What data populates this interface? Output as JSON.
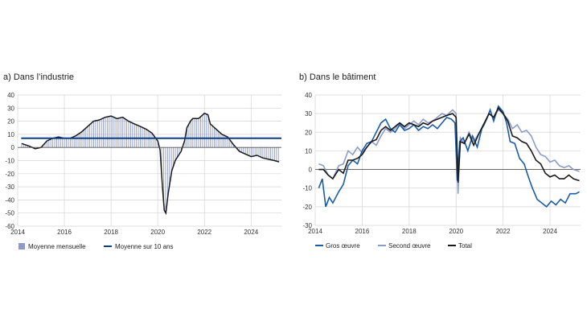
{
  "chart_data": [
    {
      "id": "a",
      "type": "bar+line",
      "title": "a)  Dans l’industrie",
      "xlim": [
        2014,
        2025.3
      ],
      "ylim": [
        -60,
        40
      ],
      "x_ticks": [
        2014,
        2016,
        2018,
        2020,
        2022,
        2024
      ],
      "y_ticks": [
        40,
        30,
        20,
        10,
        0,
        -10,
        -20,
        -30,
        -40,
        -50,
        -60
      ],
      "grid": true,
      "colors": {
        "bars": "#8d99c8",
        "bar_line": "#1a1a1a",
        "avg": "#0c3f8a"
      },
      "series": [
        {
          "name": "Moyenne mensuelle",
          "kind": "bar",
          "points": [
            [
              2014.17,
              3
            ],
            [
              2014.5,
              1
            ],
            [
              2014.75,
              -1
            ],
            [
              2015,
              0
            ],
            [
              2015.25,
              5
            ],
            [
              2015.5,
              7
            ],
            [
              2015.75,
              8
            ],
            [
              2016,
              7
            ],
            [
              2016.25,
              7
            ],
            [
              2016.5,
              9
            ],
            [
              2016.75,
              12
            ],
            [
              2017,
              16
            ],
            [
              2017.25,
              20
            ],
            [
              2017.5,
              21
            ],
            [
              2017.75,
              23
            ],
            [
              2018,
              24
            ],
            [
              2018.25,
              22
            ],
            [
              2018.5,
              23
            ],
            [
              2018.75,
              20
            ],
            [
              2019,
              18
            ],
            [
              2019.25,
              16
            ],
            [
              2019.5,
              14
            ],
            [
              2019.75,
              11
            ],
            [
              2020,
              5
            ],
            [
              2020.1,
              -2
            ],
            [
              2020.2,
              -30
            ],
            [
              2020.28,
              -48
            ],
            [
              2020.35,
              -50
            ],
            [
              2020.45,
              -35
            ],
            [
              2020.6,
              -18
            ],
            [
              2020.75,
              -10
            ],
            [
              2021,
              -3
            ],
            [
              2021.15,
              5
            ],
            [
              2021.25,
              15
            ],
            [
              2021.4,
              20
            ],
            [
              2021.5,
              22
            ],
            [
              2021.75,
              22
            ],
            [
              2022,
              26
            ],
            [
              2022.15,
              25
            ],
            [
              2022.25,
              18
            ],
            [
              2022.5,
              14
            ],
            [
              2022.75,
              10
            ],
            [
              2023,
              8
            ],
            [
              2023.25,
              2
            ],
            [
              2023.5,
              -3
            ],
            [
              2023.75,
              -5
            ],
            [
              2024,
              -7
            ],
            [
              2024.25,
              -6
            ],
            [
              2024.5,
              -8
            ],
            [
              2024.75,
              -9
            ],
            [
              2025,
              -10
            ],
            [
              2025.2,
              -11
            ]
          ]
        },
        {
          "name": "Moyenne sur 10 ans",
          "kind": "line",
          "points": [
            [
              2014.15,
              7
            ],
            [
              2025.3,
              7
            ]
          ]
        }
      ],
      "legend": [
        {
          "label": "Moyenne mensuelle",
          "symbol": "bar"
        },
        {
          "label": "Moyenne sur 10 ans",
          "symbol": "line"
        }
      ]
    },
    {
      "id": "b",
      "type": "line",
      "title": "b)  Dans le bâtiment",
      "xlim": [
        2014,
        2025.3
      ],
      "ylim": [
        -30,
        40
      ],
      "x_ticks": [
        2014,
        2016,
        2018,
        2020,
        2022,
        2024
      ],
      "y_ticks": [
        40,
        30,
        20,
        10,
        0,
        -10,
        -20,
        -30
      ],
      "grid": true,
      "colors": {
        "gros": "#1a5ca8",
        "second": "#8d9bc8",
        "total": "#1a1a1a"
      },
      "series": [
        {
          "name": "Gros œuvre",
          "points": [
            [
              2014.15,
              -10
            ],
            [
              2014.3,
              -5
            ],
            [
              2014.45,
              -20
            ],
            [
              2014.6,
              -15
            ],
            [
              2014.75,
              -18
            ],
            [
              2015,
              -12
            ],
            [
              2015.2,
              -8
            ],
            [
              2015.4,
              2
            ],
            [
              2015.6,
              5
            ],
            [
              2015.8,
              3
            ],
            [
              2016,
              10
            ],
            [
              2016.2,
              14
            ],
            [
              2016.4,
              15
            ],
            [
              2016.6,
              20
            ],
            [
              2016.8,
              25
            ],
            [
              2017,
              27
            ],
            [
              2017.2,
              22
            ],
            [
              2017.4,
              20
            ],
            [
              2017.6,
              24
            ],
            [
              2017.8,
              21
            ],
            [
              2018,
              22
            ],
            [
              2018.2,
              24
            ],
            [
              2018.4,
              21
            ],
            [
              2018.6,
              23
            ],
            [
              2018.8,
              22
            ],
            [
              2019,
              24
            ],
            [
              2019.2,
              22
            ],
            [
              2019.4,
              25
            ],
            [
              2019.6,
              28
            ],
            [
              2019.8,
              27
            ],
            [
              2019.95,
              25
            ],
            [
              2020.05,
              -6
            ],
            [
              2020.15,
              15
            ],
            [
              2020.3,
              17
            ],
            [
              2020.5,
              10
            ],
            [
              2020.7,
              18
            ],
            [
              2020.9,
              12
            ],
            [
              2021.1,
              22
            ],
            [
              2021.3,
              27
            ],
            [
              2021.45,
              32
            ],
            [
              2021.6,
              26
            ],
            [
              2021.8,
              34
            ],
            [
              2022,
              31
            ],
            [
              2022.15,
              25
            ],
            [
              2022.3,
              15
            ],
            [
              2022.5,
              14
            ],
            [
              2022.7,
              6
            ],
            [
              2022.9,
              3
            ],
            [
              2023.05,
              -3
            ],
            [
              2023.25,
              -10
            ],
            [
              2023.45,
              -16
            ],
            [
              2023.65,
              -18
            ],
            [
              2023.85,
              -20
            ],
            [
              2024.05,
              -17
            ],
            [
              2024.25,
              -19
            ],
            [
              2024.45,
              -16
            ],
            [
              2024.65,
              -18
            ],
            [
              2024.85,
              -13
            ],
            [
              2025.1,
              -13
            ],
            [
              2025.25,
              -12
            ]
          ]
        },
        {
          "name": "Second œuvre",
          "points": [
            [
              2014.15,
              3
            ],
            [
              2014.35,
              2
            ],
            [
              2014.55,
              -3
            ],
            [
              2014.75,
              -5
            ],
            [
              2015,
              2
            ],
            [
              2015.2,
              3
            ],
            [
              2015.4,
              10
            ],
            [
              2015.6,
              8
            ],
            [
              2015.8,
              12
            ],
            [
              2016,
              9
            ],
            [
              2016.2,
              12
            ],
            [
              2016.4,
              15
            ],
            [
              2016.6,
              13
            ],
            [
              2016.8,
              18
            ],
            [
              2017,
              22
            ],
            [
              2017.2,
              20
            ],
            [
              2017.4,
              22
            ],
            [
              2017.6,
              25
            ],
            [
              2017.8,
              22
            ],
            [
              2018,
              24
            ],
            [
              2018.2,
              26
            ],
            [
              2018.4,
              24
            ],
            [
              2018.6,
              27
            ],
            [
              2018.8,
              25
            ],
            [
              2019,
              26
            ],
            [
              2019.2,
              28
            ],
            [
              2019.4,
              30
            ],
            [
              2019.6,
              29
            ],
            [
              2019.85,
              32
            ],
            [
              2020,
              30
            ],
            [
              2020.08,
              -13
            ],
            [
              2020.18,
              17
            ],
            [
              2020.35,
              14
            ],
            [
              2020.55,
              20
            ],
            [
              2020.75,
              15
            ],
            [
              2021,
              20
            ],
            [
              2021.2,
              24
            ],
            [
              2021.4,
              30
            ],
            [
              2021.6,
              28
            ],
            [
              2021.8,
              32
            ],
            [
              2022,
              30
            ],
            [
              2022.2,
              27
            ],
            [
              2022.4,
              22
            ],
            [
              2022.6,
              24
            ],
            [
              2022.8,
              20
            ],
            [
              2023,
              21
            ],
            [
              2023.2,
              18
            ],
            [
              2023.4,
              12
            ],
            [
              2023.6,
              8
            ],
            [
              2023.8,
              7
            ],
            [
              2024,
              4
            ],
            [
              2024.2,
              5
            ],
            [
              2024.4,
              2
            ],
            [
              2024.6,
              1
            ],
            [
              2024.8,
              2
            ],
            [
              2025,
              0
            ],
            [
              2025.25,
              -1
            ]
          ]
        },
        {
          "name": "Total",
          "points": [
            [
              2014.15,
              0
            ],
            [
              2014.35,
              0
            ],
            [
              2014.55,
              -3
            ],
            [
              2014.75,
              -5
            ],
            [
              2015,
              0
            ],
            [
              2015.2,
              -2
            ],
            [
              2015.4,
              5
            ],
            [
              2015.6,
              5
            ],
            [
              2015.8,
              6
            ],
            [
              2016,
              8
            ],
            [
              2016.2,
              12
            ],
            [
              2016.4,
              15
            ],
            [
              2016.6,
              16
            ],
            [
              2016.8,
              21
            ],
            [
              2017,
              23
            ],
            [
              2017.2,
              21
            ],
            [
              2017.4,
              23
            ],
            [
              2017.6,
              25
            ],
            [
              2017.8,
              23
            ],
            [
              2018,
              25
            ],
            [
              2018.2,
              24
            ],
            [
              2018.4,
              23
            ],
            [
              2018.6,
              25
            ],
            [
              2018.8,
              24
            ],
            [
              2019,
              26
            ],
            [
              2019.2,
              27
            ],
            [
              2019.4,
              28
            ],
            [
              2019.6,
              29
            ],
            [
              2019.85,
              30
            ],
            [
              2020,
              28
            ],
            [
              2020.08,
              -7
            ],
            [
              2020.18,
              15
            ],
            [
              2020.35,
              14
            ],
            [
              2020.55,
              19
            ],
            [
              2020.75,
              13
            ],
            [
              2021,
              20
            ],
            [
              2021.2,
              25
            ],
            [
              2021.4,
              30
            ],
            [
              2021.6,
              28
            ],
            [
              2021.8,
              33
            ],
            [
              2022,
              30
            ],
            [
              2022.2,
              26
            ],
            [
              2022.4,
              18
            ],
            [
              2022.6,
              17
            ],
            [
              2022.8,
              15
            ],
            [
              2023,
              14
            ],
            [
              2023.2,
              10
            ],
            [
              2023.4,
              5
            ],
            [
              2023.6,
              3
            ],
            [
              2023.8,
              -2
            ],
            [
              2024,
              -4
            ],
            [
              2024.2,
              -3
            ],
            [
              2024.4,
              -5
            ],
            [
              2024.6,
              -5
            ],
            [
              2024.8,
              -3
            ],
            [
              2025,
              -5
            ],
            [
              2025.25,
              -6
            ]
          ]
        }
      ],
      "legend": [
        {
          "label": "Gros œuvre",
          "symbol": "line"
        },
        {
          "label": "Second œuvre",
          "symbol": "line"
        },
        {
          "label": "Total",
          "symbol": "line"
        }
      ]
    }
  ]
}
